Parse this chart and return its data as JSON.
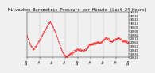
{
  "title": "Milwaukee Barometric Pressure per Minute (Last 24 Hours)",
  "line_color": "#ff0000",
  "background_color": "#f0f0f0",
  "plot_bg_color": "#f0f0f0",
  "grid_color": "#999999",
  "ylim": [
    29.2,
    30.4
  ],
  "yticks": [
    29.2,
    29.3,
    29.4,
    29.5,
    29.6,
    29.7,
    29.8,
    29.9,
    30.0,
    30.1,
    30.2,
    30.3,
    30.4
  ],
  "num_points": 1440,
  "pressure_shape": [
    [
      0,
      29.78
    ],
    [
      30,
      29.65
    ],
    [
      60,
      29.5
    ],
    [
      90,
      29.42
    ],
    [
      120,
      29.48
    ],
    [
      160,
      29.6
    ],
    [
      200,
      29.72
    ],
    [
      240,
      29.88
    ],
    [
      280,
      30.0
    ],
    [
      310,
      30.1
    ],
    [
      330,
      30.15
    ],
    [
      360,
      30.05
    ],
    [
      400,
      29.88
    ],
    [
      440,
      29.68
    ],
    [
      480,
      29.45
    ],
    [
      520,
      29.3
    ],
    [
      560,
      29.22
    ],
    [
      600,
      29.28
    ],
    [
      640,
      29.32
    ],
    [
      680,
      29.38
    ],
    [
      720,
      29.42
    ],
    [
      760,
      29.4
    ],
    [
      800,
      29.38
    ],
    [
      840,
      29.42
    ],
    [
      880,
      29.52
    ],
    [
      920,
      29.55
    ],
    [
      960,
      29.58
    ],
    [
      1000,
      29.6
    ],
    [
      1040,
      29.58
    ],
    [
      1080,
      29.65
    ],
    [
      1120,
      29.72
    ],
    [
      1160,
      29.68
    ],
    [
      1200,
      29.62
    ],
    [
      1250,
      29.68
    ],
    [
      1300,
      29.72
    ],
    [
      1350,
      29.65
    ],
    [
      1400,
      29.62
    ],
    [
      1440,
      29.58
    ]
  ],
  "vgrid_positions": [
    180,
    360,
    540,
    720,
    900,
    1080,
    1260
  ],
  "xtick_positions": [
    0,
    180,
    360,
    540,
    720,
    900,
    1080,
    1260,
    1440
  ],
  "xtick_labels": [
    "12a",
    "3a",
    "6a",
    "9a",
    "12p",
    "3p",
    "6p",
    "9p",
    "12a"
  ],
  "title_fontsize": 3.8,
  "tick_fontsize": 2.8
}
